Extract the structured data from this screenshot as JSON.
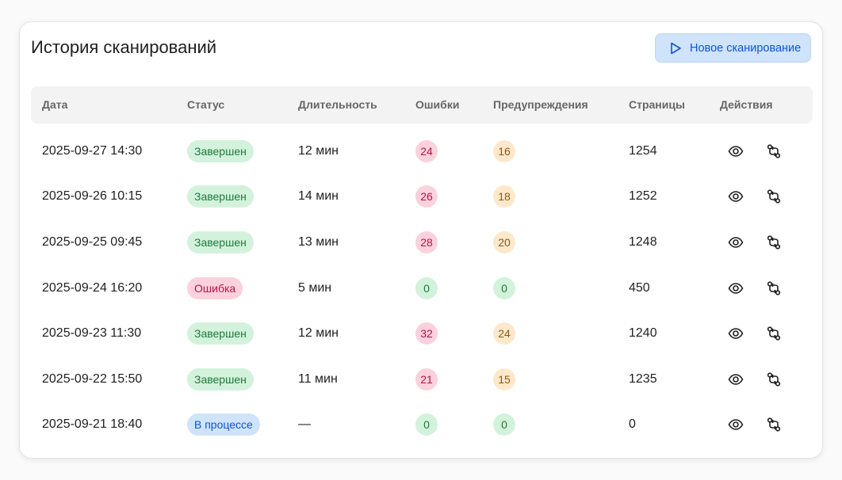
{
  "title": "История сканирований",
  "new_scan_button": {
    "label": "Новое сканирование",
    "icon": "play-icon"
  },
  "columns": {
    "date": "Дата",
    "status": "Статус",
    "duration": "Длительность",
    "errors": "Ошибки",
    "warnings": "Предупреждения",
    "pages": "Страницы",
    "actions": "Действия"
  },
  "rows": [
    {
      "date": "2025-09-27 14:30",
      "status": "Завершен",
      "status_type": "success",
      "duration": "12 мин",
      "errors": "24",
      "warnings": "16",
      "pages": "1254"
    },
    {
      "date": "2025-09-26 10:15",
      "status": "Завершен",
      "status_type": "success",
      "duration": "14 мин",
      "errors": "26",
      "warnings": "18",
      "pages": "1252"
    },
    {
      "date": "2025-09-25 09:45",
      "status": "Завершен",
      "status_type": "success",
      "duration": "13 мин",
      "errors": "28",
      "warnings": "20",
      "pages": "1248"
    },
    {
      "date": "2025-09-24 16:20",
      "status": "Ошибка",
      "status_type": "error",
      "duration": "5 мин",
      "errors": "0",
      "warnings": "0",
      "pages": "450"
    },
    {
      "date": "2025-09-23 11:30",
      "status": "Завершен",
      "status_type": "success",
      "duration": "12 мин",
      "errors": "32",
      "warnings": "24",
      "pages": "1240"
    },
    {
      "date": "2025-09-22 15:50",
      "status": "Завершен",
      "status_type": "success",
      "duration": "11 мин",
      "errors": "21",
      "warnings": "15",
      "pages": "1235"
    },
    {
      "date": "2025-09-21 18:40",
      "status": "В процессе",
      "status_type": "progress",
      "duration": "—",
      "errors": "0",
      "warnings": "0",
      "pages": "0"
    }
  ],
  "row_actions": [
    "eye-icon",
    "compare-icon"
  ],
  "colors": {
    "accent": "#0b57d0",
    "success_bg": "#d3f2dc",
    "error_bg": "#fbd1dd",
    "warning_bg": "#fde8cc",
    "progress_bg": "#cfe3fb"
  }
}
